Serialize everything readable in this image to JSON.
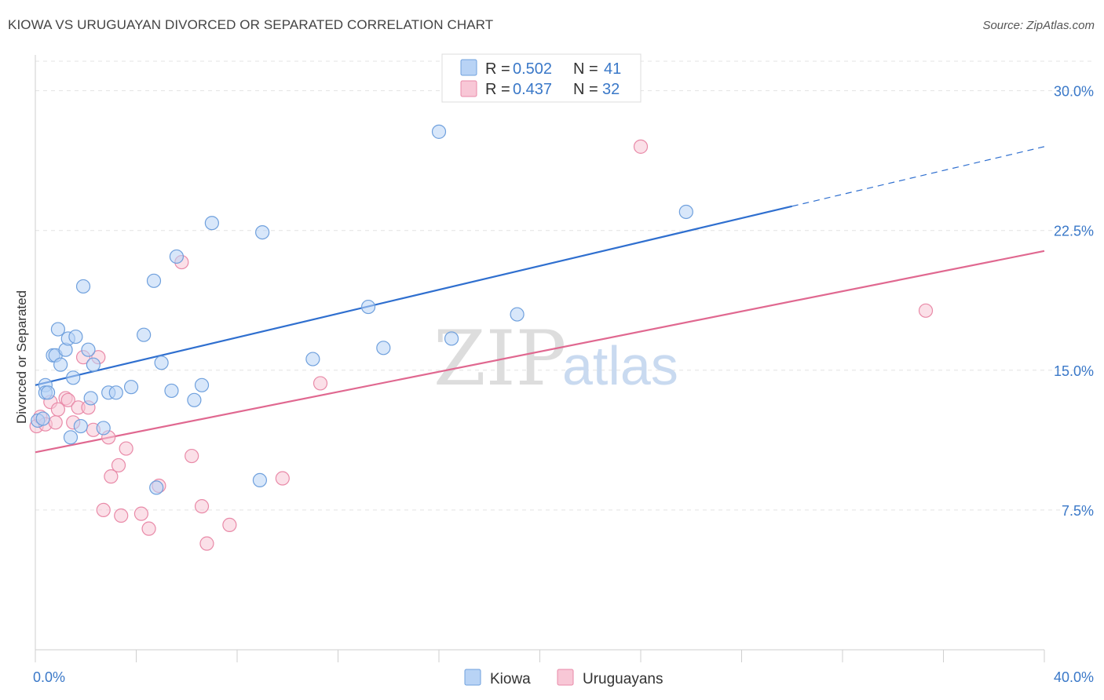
{
  "title": "KIOWA VS URUGUAYAN DIVORCED OR SEPARATED CORRELATION CHART",
  "source": "Source: ZipAtlas.com",
  "watermark": {
    "zip": "ZIP",
    "atlas": "atlas"
  },
  "colors": {
    "kiowa_fill": "#b8d3f5",
    "kiowa_stroke": "#6fa0dd",
    "kiowa_line": "#2f6fcf",
    "uru_fill": "#f8c7d6",
    "uru_stroke": "#e98aa8",
    "uru_line": "#e06890",
    "grid": "#e3e3e3",
    "tick_text": "#3a78c8"
  },
  "legend": {
    "rows": [
      {
        "r_label": "R =",
        "r_value": "0.502",
        "n_label": "N =",
        "n_value": "41"
      },
      {
        "r_label": "R =",
        "r_value": "0.437",
        "n_label": "N =",
        "n_value": "32"
      }
    ]
  },
  "chart_data": {
    "type": "scatter",
    "title": "KIOWA VS URUGUAYAN DIVORCED OR SEPARATED CORRELATION CHART",
    "xlabel": "",
    "ylabel": "Divorced or Separated",
    "xlim": [
      0,
      40
    ],
    "ylim": [
      0,
      31.5
    ],
    "x_tick_labels": [
      "0.0%",
      "40.0%"
    ],
    "y_ticks": [
      7.5,
      15.0,
      22.5,
      30.0
    ],
    "y_tick_labels": [
      "7.5%",
      "15.0%",
      "22.5%",
      "30.0%"
    ],
    "grid": true,
    "legend_position": "bottom",
    "series": [
      {
        "name": "Kiowa",
        "R": 0.502,
        "N": 41,
        "trend": {
          "x_start": 0.0,
          "y_start": 14.2,
          "x_solid_end": 30.0,
          "y_solid_end": 23.8,
          "x_end": 40.0,
          "y_end": 27.0
        },
        "points": [
          [
            0.1,
            12.3
          ],
          [
            0.3,
            12.4
          ],
          [
            0.4,
            14.2
          ],
          [
            0.4,
            13.8
          ],
          [
            0.5,
            13.8
          ],
          [
            0.7,
            15.8
          ],
          [
            0.8,
            15.8
          ],
          [
            0.9,
            17.2
          ],
          [
            1.0,
            15.3
          ],
          [
            1.2,
            16.1
          ],
          [
            1.3,
            16.7
          ],
          [
            1.4,
            11.4
          ],
          [
            1.5,
            14.6
          ],
          [
            1.6,
            16.8
          ],
          [
            1.8,
            12.0
          ],
          [
            1.9,
            19.5
          ],
          [
            2.1,
            16.1
          ],
          [
            2.2,
            13.5
          ],
          [
            2.3,
            15.3
          ],
          [
            2.7,
            11.9
          ],
          [
            2.9,
            13.8
          ],
          [
            3.2,
            13.8
          ],
          [
            3.8,
            14.1
          ],
          [
            4.3,
            16.9
          ],
          [
            4.7,
            19.8
          ],
          [
            4.8,
            8.7
          ],
          [
            5.0,
            15.4
          ],
          [
            5.4,
            13.9
          ],
          [
            5.6,
            21.1
          ],
          [
            6.3,
            13.4
          ],
          [
            6.6,
            14.2
          ],
          [
            7.0,
            22.9
          ],
          [
            8.9,
            9.1
          ],
          [
            9.0,
            22.4
          ],
          [
            11.0,
            15.6
          ],
          [
            13.2,
            18.4
          ],
          [
            13.8,
            16.2
          ],
          [
            16.0,
            27.8
          ],
          [
            16.5,
            16.7
          ],
          [
            19.1,
            18.0
          ],
          [
            25.8,
            23.5
          ]
        ]
      },
      {
        "name": "Uruguayans",
        "R": 0.437,
        "N": 32,
        "trend": {
          "x_start": 0.0,
          "y_start": 10.6,
          "x_end": 40.0,
          "y_end": 21.4
        },
        "points": [
          [
            0.05,
            12.0
          ],
          [
            0.2,
            12.5
          ],
          [
            0.4,
            12.1
          ],
          [
            0.6,
            13.3
          ],
          [
            0.8,
            12.2
          ],
          [
            0.9,
            12.9
          ],
          [
            1.2,
            13.5
          ],
          [
            1.3,
            13.4
          ],
          [
            1.5,
            12.2
          ],
          [
            1.7,
            13.0
          ],
          [
            1.9,
            15.7
          ],
          [
            2.1,
            13.0
          ],
          [
            2.3,
            11.8
          ],
          [
            2.5,
            15.7
          ],
          [
            2.7,
            7.5
          ],
          [
            2.9,
            11.4
          ],
          [
            3.0,
            9.3
          ],
          [
            3.3,
            9.9
          ],
          [
            3.4,
            7.2
          ],
          [
            3.6,
            10.8
          ],
          [
            4.2,
            7.3
          ],
          [
            4.5,
            6.5
          ],
          [
            4.9,
            8.8
          ],
          [
            5.8,
            20.8
          ],
          [
            6.2,
            10.4
          ],
          [
            6.6,
            7.7
          ],
          [
            6.8,
            5.7
          ],
          [
            7.7,
            6.7
          ],
          [
            9.8,
            9.2
          ],
          [
            11.3,
            14.3
          ],
          [
            24.0,
            27.0
          ],
          [
            35.3,
            18.2
          ]
        ]
      }
    ]
  }
}
